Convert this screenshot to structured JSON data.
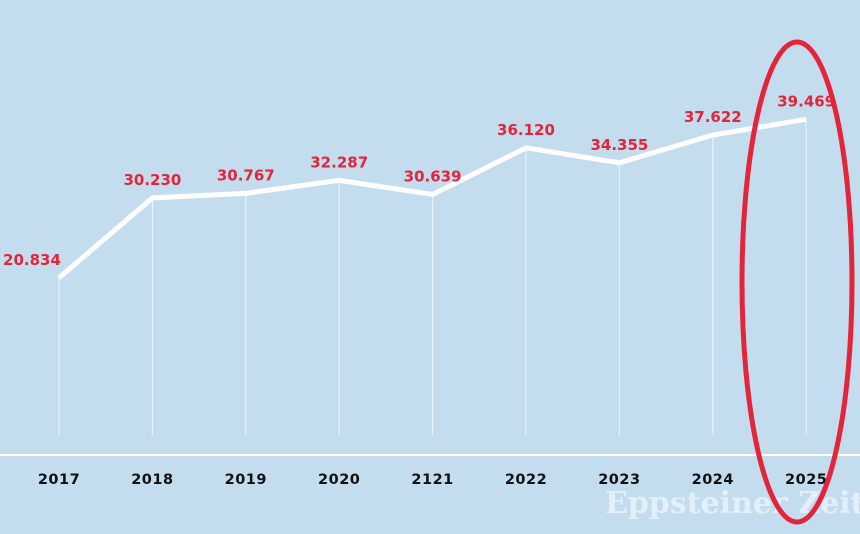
{
  "chart_data": {
    "type": "line",
    "title": "",
    "xlabel": "",
    "ylabel": "",
    "categories": [
      "2017",
      "2018",
      "2019",
      "2020",
      "2121",
      "2022",
      "2023",
      "2024",
      "2025"
    ],
    "values": [
      20834,
      30230,
      30767,
      32287,
      30639,
      36120,
      34355,
      37622,
      39469
    ],
    "value_labels": [
      "20.834",
      "30.230",
      "30.767",
      "32.287",
      "30.639",
      "36.120",
      "34.355",
      "37.622",
      "39.469"
    ],
    "ylim": [
      0,
      53500
    ],
    "grid": false,
    "highlight": "2025",
    "colors": {
      "background": "#c3ddee",
      "line": "#ffffff",
      "labels": "#e3243a",
      "highlight": "#e3243a"
    }
  },
  "watermark": "Eppsteiner Zeitung"
}
